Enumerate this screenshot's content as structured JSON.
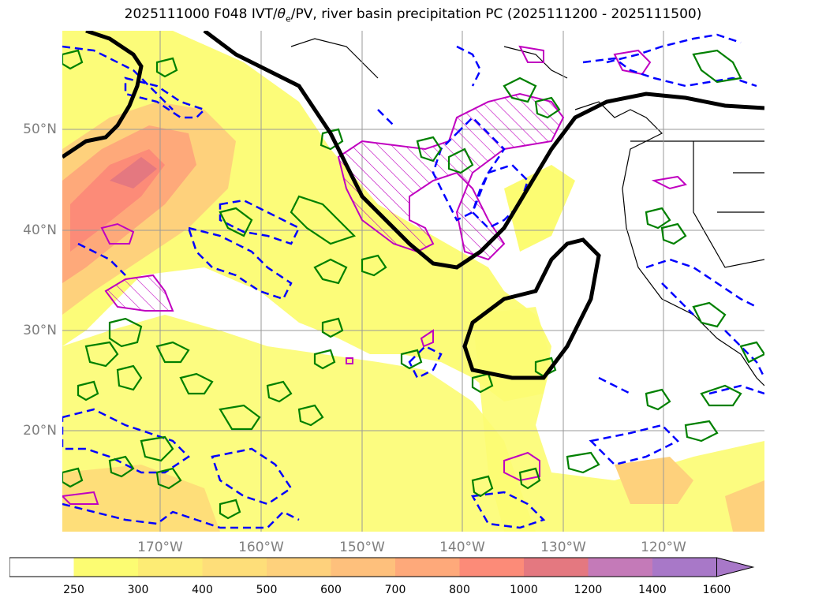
{
  "title": {
    "prefix": "2025111000 F048 IVT/",
    "theta": "θ",
    "theta_sub": "e",
    "suffix": "/PV, river basin precipitation PC (2025111200 - 2025111500)"
  },
  "map": {
    "region": "North Pacific",
    "latitude_labels": [
      "50°N",
      "40°N",
      "30°N",
      "20°N"
    ],
    "longitude_labels": [
      "170°W",
      "160°W",
      "150°W",
      "140°W",
      "130°W",
      "120°W"
    ]
  },
  "colorbar": {
    "levels": [
      "250",
      "300",
      "400",
      "500",
      "600",
      "700",
      "800",
      "1000",
      "1200",
      "1400",
      "1600"
    ],
    "colors": [
      "#ffffff",
      "#fcfc72",
      "#fdec74",
      "#fede79",
      "#fed17c",
      "#fec07c",
      "#fea97a",
      "#fc8b78",
      "#e47880",
      "#c47ab8",
      "#a878c8"
    ],
    "extend_color": "#a878c8"
  },
  "colors": {
    "pv_contour": "#000000",
    "positive_anomaly": "#008000",
    "negative_anomaly": "#0000ff",
    "precip_contour": "#c000c0",
    "grid": "#999999"
  }
}
